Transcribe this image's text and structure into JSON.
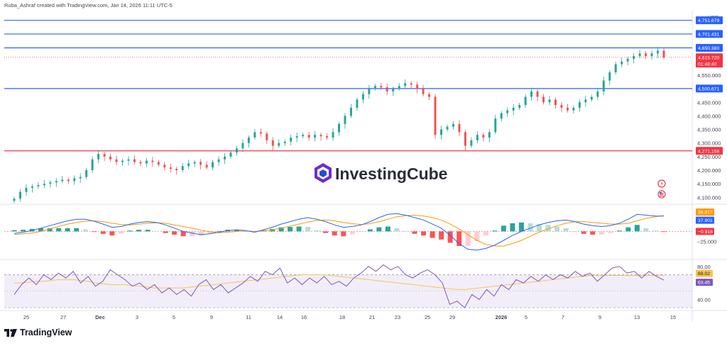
{
  "header": {
    "credit": "Ruba_Ashraf created with TradingView.com, Jan 14, 2026 11:11 UTC-5"
  },
  "currency": "USD",
  "watermark": "InvestingCube",
  "footer": {
    "brand": "TradingView"
  },
  "colors": {
    "up": "#26a69a",
    "down": "#ef5350",
    "level_blue": "#2962ff",
    "level_red": "#f23645",
    "macd_line": "#2962ff",
    "signal_line": "#ff9800",
    "rsi_line": "#7e57c2",
    "rsi_ma": "#f7c550",
    "rsi_band": "#7e57c2",
    "hist_up_strong": "#26a69a",
    "hist_up_weak": "#b2dfdb",
    "hist_down_strong": "#ff5252",
    "hist_down_weak": "#ffcdd2",
    "tag_macd": "#2962ff",
    "tag_signal": "#ff9800",
    "tag_hist": "#f23645",
    "tag_rsi": "#f7c550",
    "tag_rsi_ma": "#7e57c2",
    "tag_level": "#2962ff",
    "tag_red": "#f23645"
  },
  "chart_data": [
    {
      "type": "candlestick",
      "title": "",
      "ylim": [
        4080,
        4790
      ],
      "y_ticks": [
        "4,550.000",
        "4,450.000",
        "4,400.000",
        "4,350.000",
        "4,300.000",
        "4,250.000",
        "4,200.000",
        "4,150.000",
        "4,100.000"
      ],
      "x_ticks": [
        "25",
        "27",
        "Dec",
        "3",
        "5",
        "9",
        "11",
        "14",
        "16",
        "18",
        "21",
        "23",
        "25",
        "29",
        "2026",
        "5",
        "7",
        "9",
        "13",
        "15"
      ],
      "horizontal_levels": [
        {
          "value": 4751.679,
          "label": "4,751.679",
          "color": "blue"
        },
        {
          "value": 4701.431,
          "label": "4,701.431",
          "color": "blue"
        },
        {
          "value": 4650.38,
          "label": "4,650.380",
          "color": "blue"
        },
        {
          "value": 4500.671,
          "label": "4,500.671",
          "color": "blue"
        },
        {
          "value": 4271.158,
          "label": "4,271.158",
          "color": "red"
        }
      ],
      "last_price": {
        "value": 4615.72,
        "label": "4,615.720",
        "countdown": "01:48:40"
      },
      "close_path": [
        4095,
        4120,
        4135,
        4140,
        4145,
        4150,
        4155,
        4160,
        4165,
        4160,
        4170,
        4175,
        4200,
        4240,
        4260,
        4250,
        4240,
        4230,
        4235,
        4240,
        4230,
        4225,
        4235,
        4230,
        4220,
        4210,
        4205,
        4200,
        4215,
        4225,
        4230,
        4220,
        4210,
        4230,
        4240,
        4250,
        4265,
        4280,
        4300,
        4320,
        4340,
        4335,
        4310,
        4290,
        4300,
        4305,
        4320,
        4325,
        4330,
        4320,
        4330,
        4325,
        4320,
        4340,
        4370,
        4400,
        4430,
        4460,
        4480,
        4500,
        4510,
        4505,
        4490,
        4500,
        4510,
        4520,
        4515,
        4500,
        4480,
        4470,
        4330,
        4350,
        4360,
        4370,
        4340,
        4290,
        4310,
        4330,
        4320,
        4340,
        4390,
        4410,
        4420,
        4430,
        4440,
        4470,
        4490,
        4470,
        4450,
        4460,
        4440,
        4430,
        4420,
        4430,
        4450,
        4460,
        4470,
        4490,
        4530,
        4560,
        4590,
        4600,
        4610,
        4620,
        4630,
        4620,
        4630,
        4640,
        4615
      ]
    },
    {
      "type": "macd",
      "title": "",
      "ylim": [
        -50,
        60
      ],
      "y_ticks": [
        "25.000",
        "−25.000"
      ],
      "zero": 0,
      "tags": [
        {
          "value": 38.817,
          "label": "38.817",
          "series": "signal"
        },
        {
          "value": 37.901,
          "label": "37.901",
          "series": "macd"
        },
        {
          "value": -0.916,
          "label": "−0.916",
          "series": "histogram"
        }
      ],
      "macd_line": [
        -5,
        -2,
        2,
        8,
        14,
        20,
        26,
        30,
        30,
        25,
        18,
        10,
        12,
        18,
        22,
        24,
        22,
        16,
        8,
        0,
        -4,
        -8,
        -6,
        -2,
        2,
        4,
        2,
        -2,
        4,
        10,
        18,
        24,
        30,
        34,
        30,
        24,
        16,
        10,
        12,
        16,
        24,
        34,
        42,
        44,
        40,
        34,
        28,
        18,
        8,
        -10,
        -30,
        -44,
        -46,
        -42,
        -34,
        -22,
        -10,
        0,
        8,
        16,
        22,
        26,
        28,
        24,
        18,
        14,
        12,
        14,
        20,
        30,
        42,
        40,
        38,
        37.9
      ],
      "signal_line": [
        -8,
        -6,
        -4,
        0,
        6,
        12,
        18,
        22,
        25,
        26,
        24,
        20,
        17,
        16,
        18,
        20,
        21,
        20,
        16,
        12,
        8,
        3,
        -1,
        -3,
        -2,
        0,
        1,
        0,
        1,
        4,
        8,
        13,
        18,
        23,
        27,
        28,
        26,
        22,
        19,
        17,
        19,
        24,
        30,
        36,
        39,
        40,
        38,
        34,
        28,
        18,
        6,
        -8,
        -22,
        -32,
        -36,
        -36,
        -30,
        -22,
        -12,
        -2,
        6,
        14,
        20,
        24,
        24,
        22,
        20,
        18,
        18,
        20,
        26,
        32,
        36,
        38.8
      ],
      "histogram": [
        3,
        4,
        6,
        8,
        8,
        8,
        8,
        8,
        5,
        -1,
        -6,
        -10,
        -5,
        2,
        4,
        4,
        1,
        -4,
        -8,
        -12,
        -12,
        -11,
        -5,
        1,
        4,
        4,
        1,
        -2,
        3,
        6,
        10,
        11,
        12,
        11,
        3,
        -4,
        -10,
        -12,
        -7,
        -1,
        5,
        10,
        12,
        8,
        1,
        -6,
        -10,
        -16,
        -20,
        -28,
        -36,
        -36,
        -24,
        -10,
        2,
        14,
        20,
        22,
        20,
        18,
        16,
        12,
        8,
        0,
        -6,
        -8,
        -8,
        -4,
        2,
        10,
        16,
        8,
        2,
        -0.9
      ]
    },
    {
      "type": "rsi",
      "title": "",
      "ylim": [
        30,
        85
      ],
      "y_ticks": [
        "80.00",
        "40.00"
      ],
      "band": [
        30,
        70
      ],
      "tags": [
        {
          "value": 69.02,
          "label": "69.02",
          "series": "rsi_ma"
        },
        {
          "value": 63.45,
          "label": "63.45",
          "series": "rsi"
        }
      ],
      "rsi_line": [
        46,
        58,
        66,
        58,
        70,
        64,
        72,
        66,
        74,
        60,
        68,
        56,
        62,
        76,
        70,
        64,
        56,
        60,
        52,
        58,
        48,
        54,
        46,
        52,
        44,
        58,
        64,
        52,
        58,
        48,
        54,
        60,
        68,
        62,
        74,
        70,
        78,
        60,
        66,
        58,
        66,
        60,
        68,
        58,
        62,
        56,
        66,
        72,
        80,
        74,
        82,
        76,
        80,
        70,
        66,
        72,
        76,
        70,
        60,
        34,
        38,
        30,
        46,
        40,
        52,
        44,
        58,
        52,
        64,
        60,
        68,
        62,
        70,
        64,
        70,
        66,
        74,
        68,
        72,
        62,
        70,
        78,
        80,
        72,
        74,
        66,
        74,
        68,
        63.4
      ],
      "rsi_ma": [
        60,
        60,
        61,
        62,
        62,
        63,
        64,
        64,
        64,
        63,
        62,
        60,
        59,
        58,
        58,
        58,
        57,
        56,
        55,
        54,
        54,
        54,
        54,
        54,
        55,
        56,
        57,
        58,
        59,
        60,
        61,
        62,
        63,
        64,
        65,
        66,
        67,
        68,
        69,
        70,
        70,
        70,
        70,
        69,
        68,
        67,
        66,
        65,
        64,
        63,
        62,
        61,
        60,
        59,
        58,
        57,
        56,
        55,
        54,
        53,
        52,
        52,
        53,
        54,
        55,
        56,
        57,
        58,
        59,
        60,
        61,
        62,
        63,
        64,
        65,
        66,
        67,
        68,
        69,
        69,
        69,
        69,
        69,
        69,
        69,
        69,
        69,
        69,
        69.0
      ]
    }
  ]
}
